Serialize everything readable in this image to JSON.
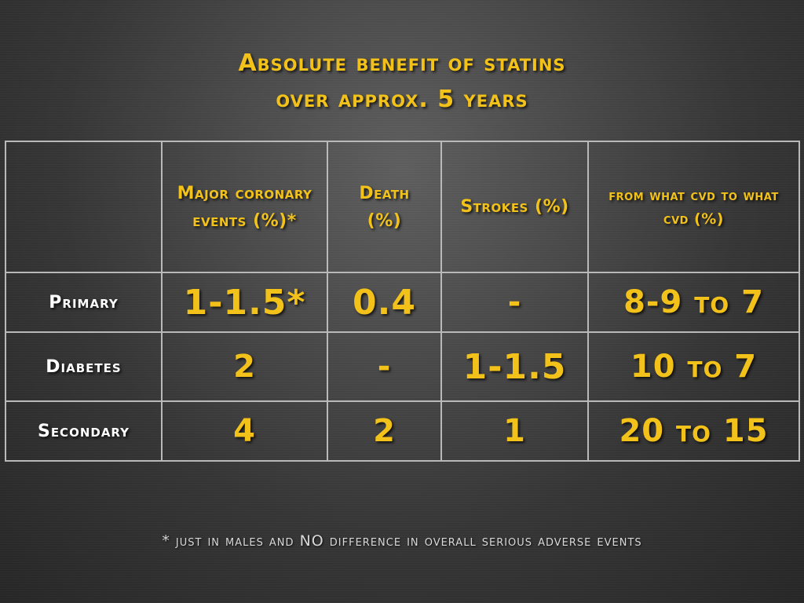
{
  "slide": {
    "title_line1": "Absolute benefit of statins",
    "title_line2": "over approx. 5 years",
    "footnote": "* just in males and NO difference in overall serious adverse events",
    "accent_color": "#f2c21b",
    "label_color": "#ffffff"
  },
  "table": {
    "headers": {
      "corner": "",
      "col1": "Major coronary events (%)*",
      "col2": "Death (%)",
      "col3": "Strokes (%)",
      "col4": "from what cvd to what cvd (%)"
    },
    "rows": [
      {
        "label": "Primary",
        "coronary": "1-1.5*",
        "death": "0.4",
        "strokes": "-",
        "cvd": "8-9 to 7"
      },
      {
        "label": "Diabetes",
        "coronary": "2",
        "death": "-",
        "strokes": "1-1.5",
        "cvd": "10 to 7"
      },
      {
        "label": "Secondary",
        "coronary": "4",
        "death": "2",
        "strokes": "1",
        "cvd": "20 to 15"
      }
    ]
  }
}
